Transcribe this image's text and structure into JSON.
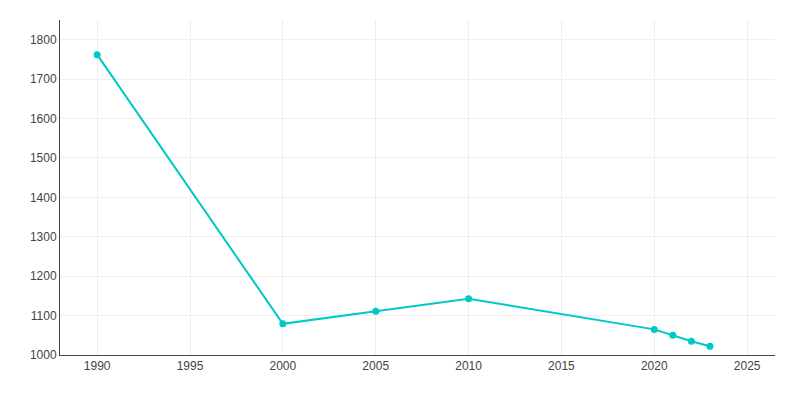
{
  "chart_data": {
    "type": "line",
    "x": [
      1990,
      2000,
      2005,
      2010,
      2020,
      2021,
      2022,
      2023
    ],
    "values": [
      1762,
      1079,
      1111,
      1143,
      1065,
      1050,
      1035,
      1022
    ],
    "color": "#00c8c8",
    "marker": "circle",
    "xlim": [
      1988,
      2026.5
    ],
    "ylim": [
      1000,
      1850
    ],
    "xticks": [
      1990,
      1995,
      2000,
      2005,
      2010,
      2015,
      2020,
      2025
    ],
    "yticks": [
      1000,
      1100,
      1200,
      1300,
      1400,
      1500,
      1600,
      1700,
      1800
    ],
    "grid": true
  }
}
